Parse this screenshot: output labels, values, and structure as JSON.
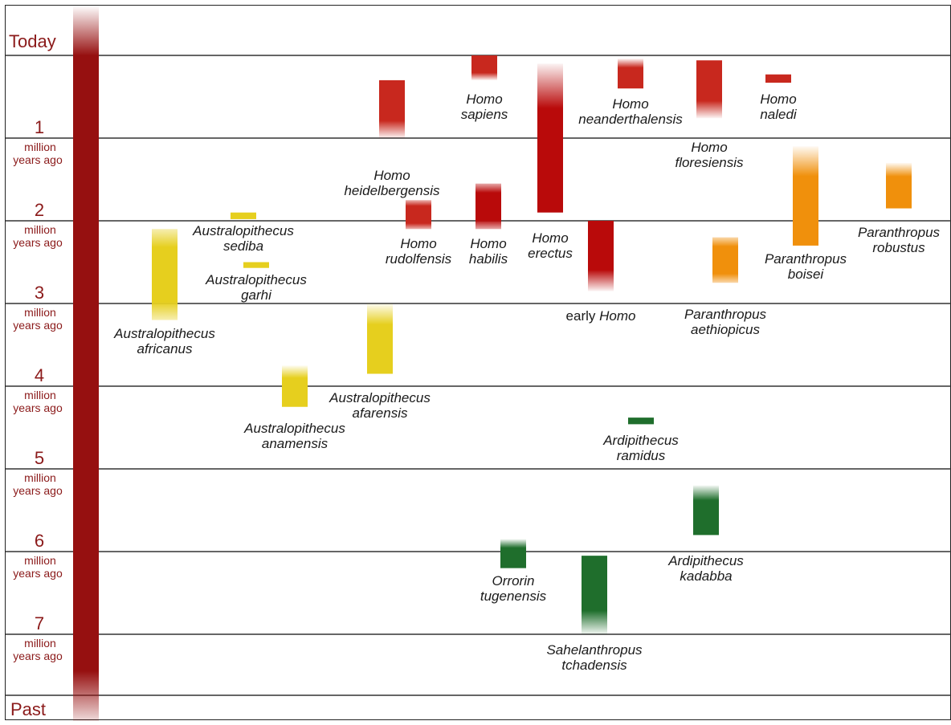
{
  "chart_data": {
    "type": "range",
    "title": "",
    "top_label": "Today",
    "bottom_label": "Past",
    "unit_label_line1": "million",
    "unit_label_line2": "years ago",
    "y_ticks": [
      "1",
      "2",
      "3",
      "4",
      "5",
      "6",
      "7"
    ],
    "ylim": [
      0,
      7.75
    ],
    "colors": {
      "Homo": "#c8281e",
      "Homo_dark": "#b90a0a",
      "Paranthropus": "#f0900c",
      "Australopithecus": "#e6cf1e",
      "early": "#1f6e2c",
      "axis_bar": "#961010"
    },
    "species": [
      {
        "line1": "Homo",
        "line2": "sapiens",
        "start": 0.3,
        "end": 0.0,
        "color": "#c8281e",
        "fade": "bottom"
      },
      {
        "line1": "Homo",
        "line2": "neanderthalensis",
        "start": 0.4,
        "end": 0.04,
        "color": "#c8281e",
        "fade": "top"
      },
      {
        "line1": "Homo",
        "line2": "naledi",
        "start": 0.33,
        "end": 0.23,
        "color": "#c8281e",
        "fade": "none"
      },
      {
        "line1": "Homo",
        "line2": "floresiensis",
        "start": 0.76,
        "end": 0.06,
        "color": "#c8281e",
        "fade": "bottom"
      },
      {
        "line1": "Homo",
        "line2": "heidelbergensis",
        "start": 1.0,
        "end": 0.3,
        "color": "#c8281e",
        "fade": "bottom"
      },
      {
        "line1": "Homo",
        "line2": "erectus",
        "start": 1.9,
        "end": 0.1,
        "color": "#b90a0a",
        "fade": "top"
      },
      {
        "line1": "Homo",
        "line2": "rudolfensis",
        "start": 2.1,
        "end": 1.75,
        "color": "#c8281e",
        "fade": "both"
      },
      {
        "line1": "Homo",
        "line2": "habilis",
        "start": 2.1,
        "end": 1.55,
        "color": "#b90a0a",
        "fade": "both"
      },
      {
        "line1": "early",
        "line2": "Homo",
        "start": 2.85,
        "end": 2.0,
        "color": "#b90a0a",
        "fade": "bottom",
        "style": "early-homo"
      },
      {
        "line1": "Paranthropus",
        "line2": "boisei",
        "start": 2.3,
        "end": 1.1,
        "color": "#f0900c",
        "fade": "top"
      },
      {
        "line1": "Paranthropus",
        "line2": "robustus",
        "start": 1.85,
        "end": 1.3,
        "color": "#f0900c",
        "fade": "top"
      },
      {
        "line1": "Paranthropus",
        "line2": "aethiopicus",
        "start": 2.75,
        "end": 2.2,
        "color": "#f0900c",
        "fade": "both"
      },
      {
        "line1": "Australopithecus",
        "line2": "sediba",
        "start": 1.98,
        "end": 1.9,
        "color": "#e6cf1e",
        "fade": "none"
      },
      {
        "line1": "Australopithecus",
        "line2": "garhi",
        "start": 2.57,
        "end": 2.5,
        "color": "#e6cf1e",
        "fade": "none"
      },
      {
        "line1": "Australopithecus",
        "line2": "africanus",
        "start": 3.2,
        "end": 2.1,
        "color": "#e6cf1e",
        "fade": "both"
      },
      {
        "line1": "Australopithecus",
        "line2": "afarensis",
        "start": 3.85,
        "end": 3.0,
        "color": "#e6cf1e",
        "fade": "top"
      },
      {
        "line1": "Australopithecus",
        "line2": "anamensis",
        "start": 4.25,
        "end": 3.75,
        "color": "#e6cf1e",
        "fade": "top"
      },
      {
        "line1": "Ardipithecus",
        "line2": "ramidus",
        "start": 4.46,
        "end": 4.38,
        "color": "#1f6e2c",
        "fade": "none"
      },
      {
        "line1": "Ardipithecus",
        "line2": "kadabba",
        "start": 5.8,
        "end": 5.2,
        "color": "#1f6e2c",
        "fade": "top"
      },
      {
        "line1": "Orrorin",
        "line2": "tugenensis",
        "start": 6.2,
        "end": 5.85,
        "color": "#1f6e2c",
        "fade": "top"
      },
      {
        "line1": "Sahelanthropus",
        "line2": "tchadensis",
        "start": 7.0,
        "end": 6.05,
        "color": "#1f6e2c",
        "fade": "bottom"
      }
    ]
  }
}
